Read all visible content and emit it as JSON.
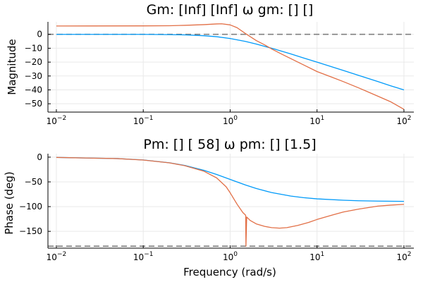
{
  "chart_data": [
    {
      "type": "line",
      "title": "Gm: [Inf] [Inf]  ω gm: [] []",
      "xlabel": "",
      "ylabel": "Magnitude",
      "xscale": "log",
      "xlim": [
        0.008,
        130
      ],
      "ylim": [
        -56,
        9
      ],
      "x_ticks": [
        {
          "value": 0.01,
          "base": "10",
          "exp": "−2"
        },
        {
          "value": 0.1,
          "base": "10",
          "exp": "−1"
        },
        {
          "value": 1,
          "base": "10",
          "exp": "0"
        },
        {
          "value": 10,
          "base": "10",
          "exp": "1"
        },
        {
          "value": 100,
          "base": "10",
          "exp": "2"
        }
      ],
      "y_ticks": [
        {
          "value": 0,
          "label": "0"
        },
        {
          "value": -10,
          "label": "−10"
        },
        {
          "value": -20,
          "label": "−20"
        },
        {
          "value": -30,
          "label": "−30"
        },
        {
          "value": -40,
          "label": "−40"
        },
        {
          "value": -50,
          "label": "−50"
        }
      ],
      "grid": true,
      "legend": "none",
      "series": [
        {
          "color": "#009af9",
          "x": [
            0.01,
            0.1,
            0.2,
            0.3,
            0.5,
            0.7,
            1.0,
            1.5,
            2.0,
            3.0,
            5.0,
            7.0,
            10,
            20,
            30,
            50,
            70,
            100
          ],
          "y": [
            0.0,
            0.0,
            -0.2,
            -0.4,
            -1.0,
            -1.7,
            -3.0,
            -5.1,
            -7.0,
            -10.0,
            -14.1,
            -17.0,
            -20.0,
            -26.0,
            -29.5,
            -34.0,
            -37.0,
            -40.0
          ]
        },
        {
          "color": "#e26f46",
          "x": [
            0.01,
            0.1,
            0.2,
            0.3,
            0.5,
            0.7,
            0.8,
            1.0,
            1.2,
            1.5,
            2.0,
            2.5,
            3.0,
            4.0,
            5.0,
            7.0,
            10,
            15,
            20,
            30,
            50,
            70,
            100
          ],
          "y": [
            6.0,
            6.1,
            6.2,
            6.5,
            7.0,
            7.5,
            7.6,
            6.8,
            4.8,
            0.6,
            -4.5,
            -7.6,
            -10.5,
            -14.5,
            -17.5,
            -22.0,
            -26.8,
            -31.0,
            -34.0,
            -38.5,
            -44.5,
            -48.5,
            -54.0
          ]
        }
      ],
      "reference_lines": [
        {
          "y": 0,
          "style": "dashed",
          "color": "#808080"
        }
      ]
    },
    {
      "type": "line",
      "title": "Pm: [] [ 58]  ω pm: [] [1.5]",
      "xlabel": "Frequency (rad/s)",
      "ylabel": "Phase (deg)",
      "xscale": "log",
      "xlim": [
        0.008,
        130
      ],
      "ylim": [
        -184,
        7
      ],
      "x_ticks": [
        {
          "value": 0.01,
          "base": "10",
          "exp": "−2"
        },
        {
          "value": 0.1,
          "base": "10",
          "exp": "−1"
        },
        {
          "value": 1,
          "base": "10",
          "exp": "0"
        },
        {
          "value": 10,
          "base": "10",
          "exp": "1"
        },
        {
          "value": 100,
          "base": "10",
          "exp": "2"
        }
      ],
      "y_ticks": [
        {
          "value": 0,
          "label": "0"
        },
        {
          "value": -50,
          "label": "−50"
        },
        {
          "value": -100,
          "label": "−100"
        },
        {
          "value": -150,
          "label": "−150"
        }
      ],
      "grid": true,
      "legend": "none",
      "series": [
        {
          "color": "#009af9",
          "x": [
            0.01,
            0.05,
            0.1,
            0.2,
            0.3,
            0.5,
            0.7,
            1.0,
            1.5,
            2.0,
            3.0,
            5.0,
            7.0,
            10,
            20,
            30,
            50,
            100
          ],
          "y": [
            -0.6,
            -2.9,
            -5.7,
            -11.3,
            -16.7,
            -26.6,
            -35.0,
            -45.0,
            -56.3,
            -63.4,
            -71.6,
            -78.7,
            -81.9,
            -84.3,
            -87.1,
            -88.1,
            -88.9,
            -89.4
          ]
        },
        {
          "color": "#e26f46",
          "x": [
            0.01,
            0.05,
            0.1,
            0.2,
            0.3,
            0.5,
            0.7,
            0.9,
            1.0,
            1.2,
            1.4,
            1.5,
            1.51,
            1.52,
            1.55,
            1.7,
            2.0,
            2.5,
            3.0,
            3.7,
            4.5,
            6.0,
            8.0,
            10,
            15,
            20,
            30,
            50,
            70,
            100
          ],
          "y": [
            -0.6,
            -2.9,
            -5.8,
            -11.5,
            -17.2,
            -28.5,
            -42.0,
            -60.0,
            -72.0,
            -95.0,
            -112.0,
            -117.0,
            -118.0,
            -180.0,
            -121.0,
            -128.0,
            -135.0,
            -140.0,
            -142.5,
            -143.5,
            -142.5,
            -138.0,
            -132.0,
            -126.0,
            -117.0,
            -111.0,
            -105.0,
            -99.0,
            -97.0,
            -95.5
          ]
        }
      ],
      "reference_lines": [
        {
          "y": -180,
          "style": "dashed",
          "color": "#808080"
        }
      ]
    }
  ]
}
